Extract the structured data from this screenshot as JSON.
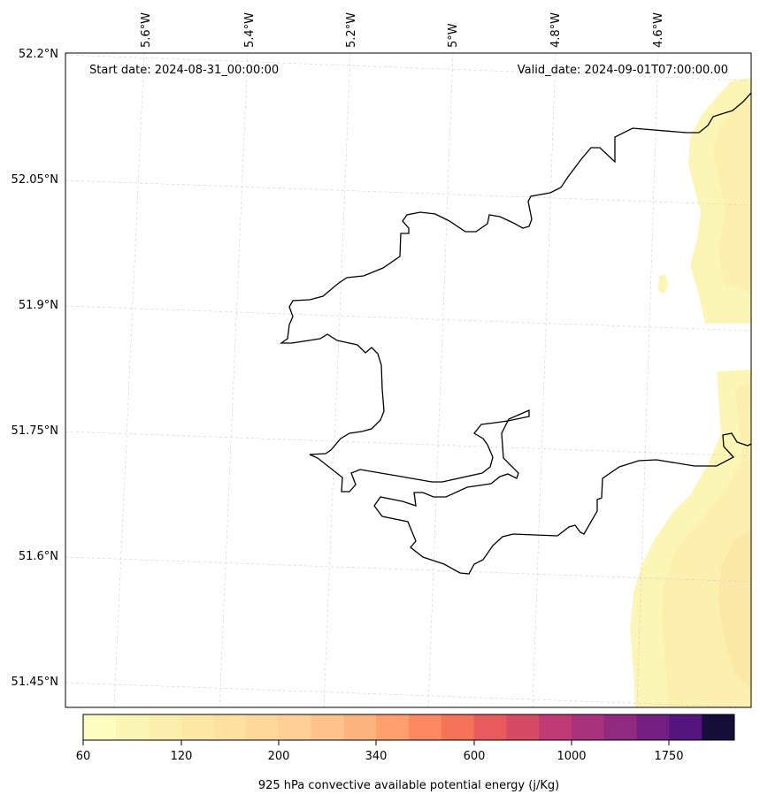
{
  "header": {
    "start_date": "Start date: 2024-08-31_00:00:00",
    "valid_date": "Valid_date: 2024-09-01T07:00:00.00"
  },
  "lon_labels": [
    "5.6°W",
    "5.4°W",
    "5.2°W",
    "5°W",
    "4.8°W",
    "4.6°W"
  ],
  "lat_labels": [
    "52.2°N",
    "52.05°N",
    "51.9°N",
    "51.75°N",
    "51.6°N",
    "51.45°N"
  ],
  "colorbar": {
    "label": "925 hPa convective available potential energy (j/Kg)",
    "tick_labels": [
      "60",
      "120",
      "200",
      "340",
      "600",
      "1000",
      "1750"
    ],
    "colors": [
      "#fcfdbf",
      "#fcf6b6",
      "#fcefad",
      "#fde7a5",
      "#fee0a0",
      "#fed89b",
      "#fecf96",
      "#fec28c",
      "#feb47f",
      "#fe9f6d",
      "#fb8861",
      "#f57459",
      "#e85a5b",
      "#d64b63",
      "#c03a76",
      "#a8327d",
      "#8f2a7f",
      "#721f81",
      "#55157e",
      "#150e38"
    ]
  },
  "map": {
    "field_colors": [
      "#fcf6b6",
      "#fdf0ae",
      "#fce8a6"
    ]
  }
}
